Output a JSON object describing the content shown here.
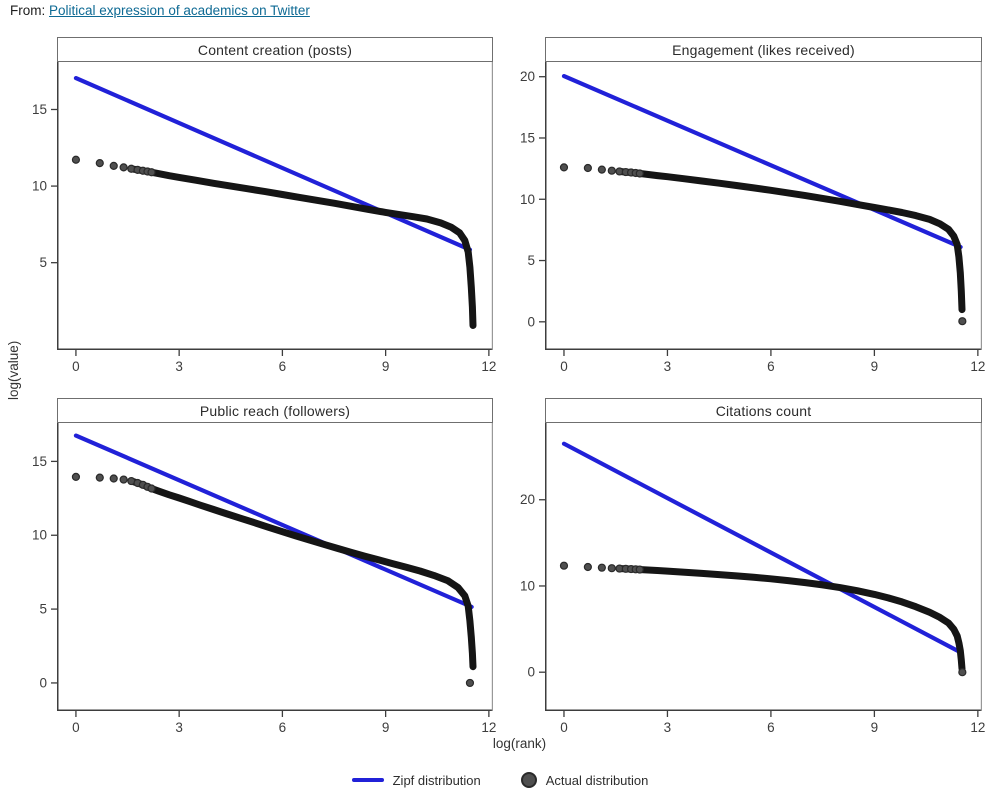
{
  "header": {
    "from_label": "From:",
    "link_text": "Political expression of academics on Twitter"
  },
  "axes": {
    "x_label": "log(rank)",
    "y_label": "log(value)"
  },
  "legend": {
    "zipf_label": "Zipf distribution",
    "actual_label": "Actual distribution"
  },
  "colors": {
    "zipf": "#2121d8",
    "actual_band": "#151515",
    "dot_fill": "#4f4f4f",
    "dot_edge": "#2a2a2a",
    "link": "#0e6a94",
    "axis": "#3d3d3d",
    "box_border": "#989898",
    "text": "#2e2e2e"
  },
  "chart_data": [
    {
      "type": "scatter",
      "title": "Content creation (posts)",
      "x_ticks": [
        0,
        3,
        6,
        9,
        12
      ],
      "y_ticks": [
        5,
        10,
        15
      ],
      "xlim": [
        -0.55,
        12.12
      ],
      "ylim": [
        -0.7,
        18.1
      ],
      "zipf_line": {
        "x": [
          0,
          11.45
        ],
        "y": [
          17.05,
          5.85
        ]
      },
      "actual_points": [
        [
          0,
          11.72
        ],
        [
          0.69,
          11.5
        ],
        [
          1.1,
          11.32
        ],
        [
          1.39,
          11.22
        ],
        [
          1.61,
          11.13
        ],
        [
          1.79,
          11.06
        ],
        [
          1.95,
          11.0
        ],
        [
          2.08,
          10.95
        ],
        [
          2.3,
          10.86
        ],
        [
          2.71,
          10.68
        ],
        [
          3,
          10.57
        ],
        [
          3.5,
          10.38
        ],
        [
          4,
          10.18
        ],
        [
          4.5,
          10.0
        ],
        [
          5,
          9.82
        ],
        [
          5.5,
          9.64
        ],
        [
          6,
          9.45
        ],
        [
          6.5,
          9.26
        ],
        [
          7,
          9.07
        ],
        [
          7.5,
          8.88
        ],
        [
          8,
          8.68
        ],
        [
          8.5,
          8.48
        ],
        [
          9,
          8.28
        ],
        [
          9.4,
          8.14
        ],
        [
          9.8,
          8.0
        ],
        [
          10.2,
          7.85
        ],
        [
          10.6,
          7.6
        ],
        [
          10.9,
          7.32
        ],
        [
          11.15,
          6.95
        ],
        [
          11.3,
          6.45
        ],
        [
          11.4,
          5.7
        ],
        [
          11.45,
          4.7
        ],
        [
          11.49,
          3.4
        ],
        [
          11.52,
          2.1
        ],
        [
          11.54,
          0.9
        ]
      ],
      "end_dot": null
    },
    {
      "type": "scatter",
      "title": "Engagement (likes received)",
      "x_ticks": [
        0,
        3,
        6,
        9,
        12
      ],
      "y_ticks": [
        0,
        5,
        10,
        15,
        20
      ],
      "xlim": [
        -0.55,
        12.12
      ],
      "ylim": [
        -2.3,
        21.2
      ],
      "zipf_line": {
        "x": [
          0,
          11.5
        ],
        "y": [
          20.05,
          6.1
        ]
      },
      "actual_points": [
        [
          0,
          12.6
        ],
        [
          0.69,
          12.55
        ],
        [
          1.1,
          12.42
        ],
        [
          1.39,
          12.33
        ],
        [
          1.61,
          12.27
        ],
        [
          1.79,
          12.22
        ],
        [
          1.95,
          12.18
        ],
        [
          2.08,
          12.14
        ],
        [
          2.3,
          12.07
        ],
        [
          2.71,
          11.93
        ],
        [
          3,
          11.84
        ],
        [
          3.5,
          11.67
        ],
        [
          4,
          11.49
        ],
        [
          4.5,
          11.31
        ],
        [
          5,
          11.12
        ],
        [
          5.5,
          10.93
        ],
        [
          6,
          10.73
        ],
        [
          6.5,
          10.52
        ],
        [
          7,
          10.3
        ],
        [
          7.5,
          10.07
        ],
        [
          8,
          9.83
        ],
        [
          8.5,
          9.58
        ],
        [
          9,
          9.33
        ],
        [
          9.4,
          9.13
        ],
        [
          9.8,
          8.92
        ],
        [
          10.2,
          8.67
        ],
        [
          10.6,
          8.36
        ],
        [
          10.9,
          8.0
        ],
        [
          11.15,
          7.55
        ],
        [
          11.3,
          7.0
        ],
        [
          11.4,
          6.3
        ],
        [
          11.45,
          5.3
        ],
        [
          11.49,
          4.0
        ],
        [
          11.52,
          2.5
        ],
        [
          11.54,
          1.0
        ]
      ],
      "end_dot": [
        11.55,
        0.05
      ]
    },
    {
      "type": "scatter",
      "title": "Public reach (followers)",
      "x_ticks": [
        0,
        3,
        6,
        9,
        12
      ],
      "y_ticks": [
        0,
        5,
        10,
        15
      ],
      "xlim": [
        -0.55,
        12.12
      ],
      "ylim": [
        -1.9,
        17.6
      ],
      "zipf_line": {
        "x": [
          0,
          11.5
        ],
        "y": [
          16.75,
          5.15
        ]
      },
      "actual_points": [
        [
          0,
          13.95
        ],
        [
          0.69,
          13.9
        ],
        [
          1.1,
          13.84
        ],
        [
          1.39,
          13.77
        ],
        [
          1.61,
          13.67
        ],
        [
          1.79,
          13.54
        ],
        [
          1.95,
          13.41
        ],
        [
          2.08,
          13.28
        ],
        [
          2.2,
          13.16
        ],
        [
          2.4,
          12.99
        ],
        [
          2.71,
          12.74
        ],
        [
          3,
          12.52
        ],
        [
          3.3,
          12.29
        ],
        [
          3.6,
          12.05
        ],
        [
          4,
          11.74
        ],
        [
          4.4,
          11.44
        ],
        [
          4.8,
          11.14
        ],
        [
          5.2,
          10.84
        ],
        [
          5.6,
          10.54
        ],
        [
          6,
          10.24
        ],
        [
          6.4,
          9.95
        ],
        [
          6.8,
          9.67
        ],
        [
          7.2,
          9.39
        ],
        [
          7.6,
          9.11
        ],
        [
          8,
          8.84
        ],
        [
          8.4,
          8.58
        ],
        [
          8.8,
          8.33
        ],
        [
          9.2,
          8.08
        ],
        [
          9.6,
          7.83
        ],
        [
          10,
          7.58
        ],
        [
          10.4,
          7.28
        ],
        [
          10.8,
          6.93
        ],
        [
          11.1,
          6.47
        ],
        [
          11.3,
          5.9
        ],
        [
          11.4,
          5.2
        ],
        [
          11.45,
          4.2
        ],
        [
          11.49,
          3.1
        ],
        [
          11.52,
          2.0
        ],
        [
          11.54,
          1.1
        ]
      ],
      "end_dot": [
        11.45,
        0.0
      ]
    },
    {
      "type": "scatter",
      "title": "Citations count",
      "x_ticks": [
        0,
        3,
        6,
        9,
        12
      ],
      "y_ticks": [
        0,
        10,
        20
      ],
      "xlim": [
        -0.55,
        12.12
      ],
      "ylim": [
        -4.5,
        28.9
      ],
      "zipf_line": {
        "x": [
          0,
          11.5
        ],
        "y": [
          26.5,
          2.3
        ]
      },
      "actual_points": [
        [
          0,
          12.35
        ],
        [
          0.69,
          12.2
        ],
        [
          1.1,
          12.12
        ],
        [
          1.39,
          12.06
        ],
        [
          1.61,
          12.02
        ],
        [
          1.79,
          11.99
        ],
        [
          1.95,
          11.96
        ],
        [
          2.08,
          11.93
        ],
        [
          2.3,
          11.88
        ],
        [
          2.71,
          11.79
        ],
        [
          3,
          11.72
        ],
        [
          3.5,
          11.59
        ],
        [
          4,
          11.46
        ],
        [
          4.5,
          11.32
        ],
        [
          5,
          11.17
        ],
        [
          5.5,
          11.01
        ],
        [
          6,
          10.83
        ],
        [
          6.5,
          10.62
        ],
        [
          7,
          10.39
        ],
        [
          7.5,
          10.12
        ],
        [
          8,
          9.81
        ],
        [
          8.5,
          9.45
        ],
        [
          9,
          9.02
        ],
        [
          9.4,
          8.62
        ],
        [
          9.8,
          8.15
        ],
        [
          10.2,
          7.6
        ],
        [
          10.6,
          6.95
        ],
        [
          10.9,
          6.35
        ],
        [
          11.15,
          5.7
        ],
        [
          11.3,
          5.0
        ],
        [
          11.4,
          4.2
        ],
        [
          11.45,
          3.4
        ],
        [
          11.49,
          2.5
        ],
        [
          11.52,
          1.4
        ],
        [
          11.54,
          0.4
        ]
      ],
      "end_dot": [
        11.55,
        0.0
      ]
    }
  ]
}
